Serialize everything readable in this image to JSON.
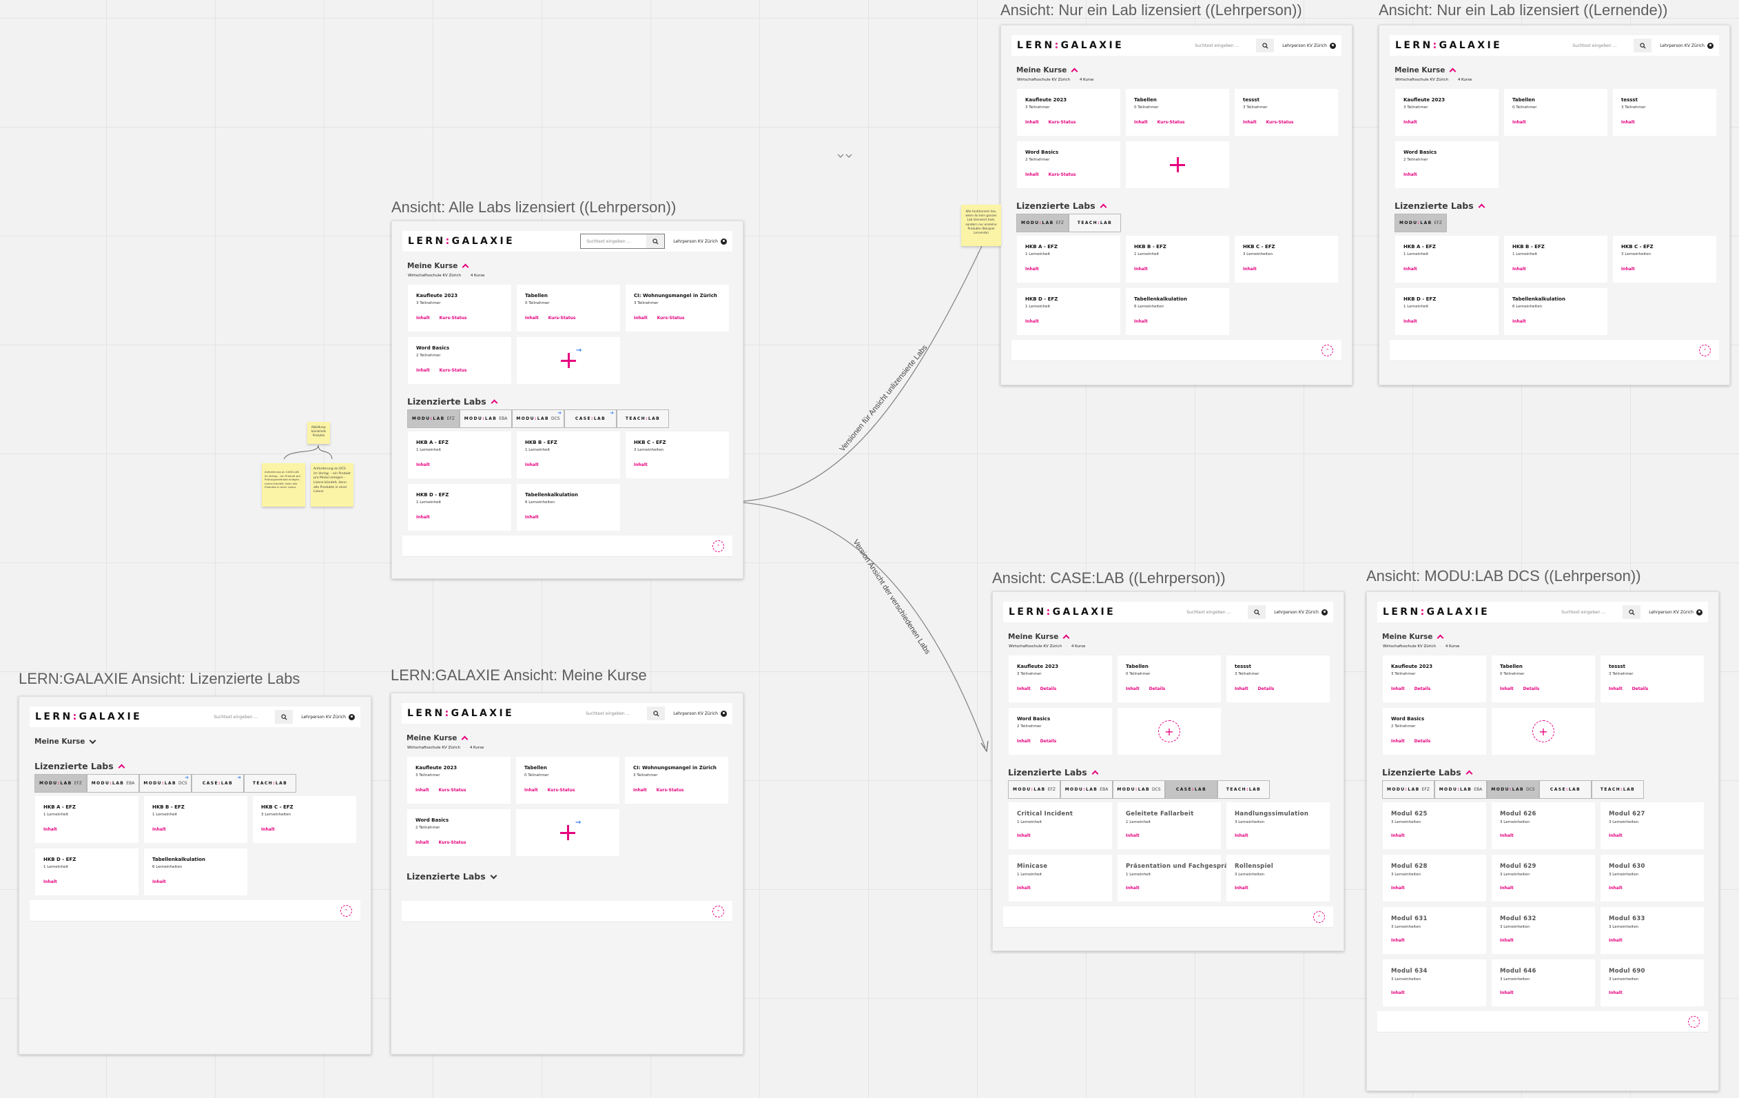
{
  "app": {
    "logo": "LERN:GALAXIE",
    "search_placeholder": "Suchtext eingeben ...",
    "user": "Lehrperson KV Zürich",
    "accent": "#e6007e",
    "marker_color": "#3b82f6"
  },
  "frames": [
    {
      "title": "Ansicht: Alle Labs lizensiert ((Lehrperson))",
      "courses": {
        "heading": "Meine Kurse",
        "expanded": true,
        "school": "Wirtschaftsschule KV Zürich",
        "count": "4 Kurse",
        "items": [
          {
            "title": "Kaufleute 2023",
            "meta": "3 Teilnehmer",
            "links": [
              "Inhalt",
              "Kurs-Status"
            ]
          },
          {
            "title": "Tabellen",
            "meta": "0 Teilnehmer",
            "links": [
              "Inhalt",
              "Kurs-Status"
            ]
          },
          {
            "title": "CI: Wohnungsmangel in Zürich",
            "meta": "3 Teilnehmer",
            "links": [
              "Inhalt",
              "Kurs-Status"
            ]
          },
          {
            "title": "Word Basics",
            "meta": "2 Teilnehmer",
            "links": [
              "Inhalt",
              "Kurs-Status"
            ]
          }
        ],
        "add_card": {
          "icon": "plus-icon",
          "badge": "arrow-right-icon"
        }
      },
      "labs": {
        "heading": "Lizenzierte Labs",
        "expanded": true,
        "tabs": [
          {
            "label": "MODU:LAB",
            "suffix": "EFZ",
            "active": true
          },
          {
            "label": "MODU:LAB",
            "suffix": "EBA"
          },
          {
            "label": "MODU:LAB",
            "suffix": "DCS",
            "marker": "arrow-right-icon"
          },
          {
            "label": "CASE:LAB",
            "suffix": "",
            "marker": "arrow-right-icon"
          },
          {
            "label": "TEACH:LAB",
            "suffix": ""
          }
        ],
        "items": [
          {
            "title": "HKB A - EFZ",
            "meta": "1 Lerneinheit",
            "links": [
              "Inhalt"
            ]
          },
          {
            "title": "HKB B - EFZ",
            "meta": "1 Lerneinheit",
            "links": [
              "Inhalt"
            ]
          },
          {
            "title": "HKB C - EFZ",
            "meta": "3 Lerneinheiten",
            "links": [
              "Inhalt"
            ]
          },
          {
            "title": "HKB D - EFZ",
            "meta": "1 Lerneinheit",
            "links": [
              "Inhalt"
            ]
          },
          {
            "title": "Tabellenkalkulation",
            "meta": "6 Lerneinheiten",
            "links": [
              "Inhalt"
            ]
          }
        ]
      }
    },
    {
      "title": "Ansicht: Nur ein Lab lizensiert ((Lehrperson))",
      "courses": {
        "heading": "Meine Kurse",
        "expanded": true,
        "school": "Wirtschaftsschule KV Zürich",
        "count": "4 Kurse",
        "items": [
          {
            "title": "Kaufleute 2023",
            "meta": "3 Teilnehmer",
            "links": [
              "Inhalt",
              "Kurs-Status"
            ]
          },
          {
            "title": "Tabellen",
            "meta": "0 Teilnehmer",
            "links": [
              "Inhalt",
              "Kurs-Status"
            ]
          },
          {
            "title": "tessst",
            "meta": "3 Teilnehmer",
            "links": [
              "Inhalt",
              "Kurs-Status"
            ]
          },
          {
            "title": "Word Basics",
            "meta": "2 Teilnehmer",
            "links": [
              "Inhalt",
              "Kurs-Status"
            ]
          }
        ],
        "add_card": {
          "icon": "plus-icon"
        }
      },
      "labs": {
        "heading": "Lizenzierte Labs",
        "expanded": true,
        "tabs": [
          {
            "label": "MODU:LAB",
            "suffix": "EFZ",
            "active": true
          },
          {
            "label": "TEACH:LAB",
            "suffix": ""
          }
        ],
        "items": [
          {
            "title": "HKB A - EFZ",
            "meta": "1 Lerneinheit",
            "links": [
              "Inhalt"
            ]
          },
          {
            "title": "HKB B - EFZ",
            "meta": "1 Lerneinheit",
            "links": [
              "Inhalt"
            ]
          },
          {
            "title": "HKB C - EFZ",
            "meta": "3 Lerneinheiten",
            "links": [
              "Inhalt"
            ]
          },
          {
            "title": "HKB D - EFZ",
            "meta": "1 Lerneinheit",
            "links": [
              "Inhalt"
            ]
          },
          {
            "title": "Tabellenkalkulation",
            "meta": "6 Lerneinheiten",
            "links": [
              "Inhalt"
            ]
          }
        ]
      }
    },
    {
      "title": "Ansicht: Nur ein Lab lizensiert ((Lernende))",
      "courses": {
        "heading": "Meine Kurse",
        "expanded": true,
        "school": "Wirtschaftsschule KV Zürich",
        "count": "4 Kurse",
        "items": [
          {
            "title": "Kaufleute 2023",
            "meta": "3 Teilnehmer",
            "links": [
              "Inhalt"
            ]
          },
          {
            "title": "Tabellen",
            "meta": "0 Teilnehmer",
            "links": [
              "Inhalt"
            ]
          },
          {
            "title": "tessst",
            "meta": "3 Teilnehmer",
            "links": [
              "Inhalt"
            ]
          },
          {
            "title": "Word Basics",
            "meta": "2 Teilnehmer",
            "links": [
              "Inhalt"
            ]
          }
        ]
      },
      "labs": {
        "heading": "Lizenzierte Labs",
        "expanded": true,
        "tabs": [
          {
            "label": "MODU:LAB",
            "suffix": "EFZ",
            "active": true
          }
        ],
        "items": [
          {
            "title": "HKB A - EFZ",
            "meta": "1 Lerneinheit",
            "links": [
              "Inhalt"
            ]
          },
          {
            "title": "HKB B - EFZ",
            "meta": "1 Lerneinheit",
            "links": [
              "Inhalt"
            ]
          },
          {
            "title": "HKB C - EFZ",
            "meta": "3 Lerneinheiten",
            "links": [
              "Inhalt"
            ]
          },
          {
            "title": "HKB D - EFZ",
            "meta": "1 Lerneinheit",
            "links": [
              "Inhalt"
            ]
          },
          {
            "title": "Tabellenkalkulation",
            "meta": "6 Lerneinheiten",
            "links": [
              "Inhalt"
            ]
          }
        ]
      }
    },
    {
      "title": "Ansicht: CASE:LAB ((Lehrperson))",
      "courses": {
        "heading": "Meine Kurse",
        "expanded": true,
        "school": "Wirtschaftsschule KV Zürich",
        "count": "4 Kurse",
        "items": [
          {
            "title": "Kaufleute 2023",
            "meta": "3 Teilnehmer",
            "links": [
              "Inhalt",
              "Details"
            ]
          },
          {
            "title": "Tabellen",
            "meta": "0 Teilnehmer",
            "links": [
              "Inhalt",
              "Details"
            ]
          },
          {
            "title": "tessst",
            "meta": "3 Teilnehmer",
            "links": [
              "Inhalt",
              "Details"
            ]
          },
          {
            "title": "Word Basics",
            "meta": "2 Teilnehmer",
            "links": [
              "Inhalt",
              "Details"
            ]
          }
        ],
        "add_card": {
          "icon": "circle-plus-icon"
        }
      },
      "labs": {
        "heading": "Lizenzierte Labs",
        "expanded": true,
        "tabs": [
          {
            "label": "MODU:LAB",
            "suffix": "EFZ"
          },
          {
            "label": "MODU:LAB",
            "suffix": "EBA"
          },
          {
            "label": "MODU:LAB",
            "suffix": "DCS"
          },
          {
            "label": "CASE:LAB",
            "suffix": "",
            "active": true
          },
          {
            "label": "TEACH:LAB",
            "suffix": ""
          }
        ],
        "items": [
          {
            "title": "Critical Incident",
            "meta": "1 Lerneinheit",
            "links": [
              "Inhalt"
            ]
          },
          {
            "title": "Geleitete Fallarbeit",
            "meta": "1 Lerneinheit",
            "links": [
              "Inhalt"
            ]
          },
          {
            "title": "Handlungssimulation",
            "meta": "3 Lerneinheiten",
            "links": [
              "Inhalt"
            ]
          },
          {
            "title": "Minicase",
            "meta": "1 Lerneinheit",
            "links": [
              "Inhalt"
            ]
          },
          {
            "title": "Präsentation und Fachgespräch",
            "meta": "1 Lerneinheit",
            "links": [
              "Inhalt"
            ]
          },
          {
            "title": "Rollenspiel",
            "meta": "3 Lerneinheiten",
            "links": [
              "Inhalt"
            ]
          }
        ]
      }
    },
    {
      "title": "Ansicht: MODU:LAB DCS ((Lehrperson))",
      "courses": {
        "heading": "Meine Kurse",
        "expanded": true,
        "school": "Wirtschaftsschule KV Zürich",
        "count": "4 Kurse",
        "items": [
          {
            "title": "Kaufleute 2023",
            "meta": "3 Teilnehmer",
            "links": [
              "Inhalt",
              "Details"
            ]
          },
          {
            "title": "Tabellen",
            "meta": "0 Teilnehmer",
            "links": [
              "Inhalt",
              "Details"
            ]
          },
          {
            "title": "tessst",
            "meta": "3 Teilnehmer",
            "links": [
              "Inhalt",
              "Details"
            ]
          },
          {
            "title": "Word Basics",
            "meta": "2 Teilnehmer",
            "links": [
              "Inhalt",
              "Details"
            ]
          }
        ],
        "add_card": {
          "icon": "circle-plus-icon"
        }
      },
      "labs": {
        "heading": "Lizenzierte Labs",
        "expanded": true,
        "tabs": [
          {
            "label": "MODU:LAB",
            "suffix": "EFZ"
          },
          {
            "label": "MODU:LAB",
            "suffix": "EBA"
          },
          {
            "label": "MODU:LAB",
            "suffix": "DCS",
            "active": true
          },
          {
            "label": "CASE:LAB",
            "suffix": ""
          },
          {
            "label": "TEACH:LAB",
            "suffix": ""
          }
        ],
        "items": [
          {
            "title": "Modul 625",
            "meta": "3 Lerneinheiten",
            "links": [
              "Inhalt"
            ]
          },
          {
            "title": "Modul 626",
            "meta": "3 Lerneinheiten",
            "links": [
              "Inhalt"
            ]
          },
          {
            "title": "Modul 627",
            "meta": "3 Lerneinheiten",
            "links": [
              "Inhalt"
            ]
          },
          {
            "title": "Modul 628",
            "meta": "3 Lerneinheiten",
            "links": [
              "Inhalt"
            ]
          },
          {
            "title": "Modul 629",
            "meta": "3 Lerneinheiten",
            "links": [
              "Inhalt"
            ]
          },
          {
            "title": "Modul 630",
            "meta": "3 Lerneinheiten",
            "links": [
              "Inhalt"
            ]
          },
          {
            "title": "Modul 631",
            "meta": "3 Lerneinheiten",
            "links": [
              "Inhalt"
            ]
          },
          {
            "title": "Modul 632",
            "meta": "3 Lerneinheiten",
            "links": [
              "Inhalt"
            ]
          },
          {
            "title": "Modul 633",
            "meta": "3 Lerneinheiten",
            "links": [
              "Inhalt"
            ]
          },
          {
            "title": "Modul 634",
            "meta": "3 Lerneinheiten",
            "links": [
              "Inhalt"
            ]
          },
          {
            "title": "Modul 646",
            "meta": "3 Lerneinheiten",
            "links": [
              "Inhalt"
            ]
          },
          {
            "title": "Modul 690",
            "meta": "3 Lerneinheiten",
            "links": [
              "Inhalt"
            ]
          }
        ]
      }
    },
    {
      "title": "LERN:GALAXIE Ansicht: Lizenzierte Labs",
      "courses": {
        "heading": "Meine Kurse",
        "expanded": false
      },
      "labs": {
        "heading": "Lizenzierte Labs",
        "expanded": true,
        "tabs": [
          {
            "label": "MODU:LAB",
            "suffix": "EFZ",
            "active": true
          },
          {
            "label": "MODU:LAB",
            "suffix": "EBA"
          },
          {
            "label": "MODU:LAB",
            "suffix": "DCS",
            "marker": "arrow-right-icon"
          },
          {
            "label": "CASE:LAB",
            "suffix": "",
            "marker": "arrow-right-icon"
          },
          {
            "label": "TEACH:LAB",
            "suffix": ""
          }
        ],
        "items": [
          {
            "title": "HKB A - EFZ",
            "meta": "1 Lerneinheit",
            "links": [
              "Inhalt"
            ]
          },
          {
            "title": "HKB B - EFZ",
            "meta": "1 Lerneinheit",
            "links": [
              "Inhalt"
            ]
          },
          {
            "title": "HKB C - EFZ",
            "meta": "3 Lerneinheiten",
            "links": [
              "Inhalt"
            ]
          },
          {
            "title": "HKB D - EFZ",
            "meta": "1 Lerneinheit",
            "links": [
              "Inhalt"
            ]
          },
          {
            "title": "Tabellenkalkulation",
            "meta": "6 Lerneinheiten",
            "links": [
              "Inhalt"
            ]
          }
        ]
      }
    },
    {
      "title": "LERN:GALAXIE Ansicht: Meine Kurse",
      "courses": {
        "heading": "Meine Kurse",
        "expanded": true,
        "school": "Wirtschaftsschule KV Zürich",
        "count": "4 Kurse",
        "items": [
          {
            "title": "Kaufleute 2023",
            "meta": "3 Teilnehmer",
            "links": [
              "Inhalt",
              "Kurs-Status"
            ]
          },
          {
            "title": "Tabellen",
            "meta": "0 Teilnehmer",
            "links": [
              "Inhalt",
              "Kurs-Status"
            ]
          },
          {
            "title": "CI: Wohnungsmangel in Zürich",
            "meta": "3 Teilnehmer",
            "links": [
              "Inhalt",
              "Kurs-Status"
            ]
          },
          {
            "title": "Word Basics",
            "meta": "2 Teilnehmer",
            "links": [
              "Inhalt",
              "Kurs-Status"
            ]
          }
        ],
        "add_card": {
          "icon": "plus-icon",
          "badge": "arrow-right-icon"
        }
      },
      "labs": {
        "heading": "Lizenzierte Labs",
        "expanded": false
      }
    }
  ],
  "notes": [
    {
      "text": "Wie funktioniert das, wenn du kein ganzes Lab lizenziert hast, sondern nur einzelne Produkte (Beispiel Lernende)"
    },
    {
      "text": "Abbildung: bündelnde Produkte"
    },
    {
      "text": "Anforderung an CASE:LAB im Verlag: - ein Produkt pro Prüfungsmethode anlegen - Lizenz bündelt, dann alle Produkte in einer Lizenz"
    },
    {
      "text": "Anforderung an DCS im Verlag: - ein Produkt pro Modul anlegen - Lizenz bündelt, dann alle Produkte in einer Lizenz"
    }
  ],
  "connectors": [
    {
      "label": "Versionen für Ansicht unlizensierte Labs"
    },
    {
      "label": "Version Ansicht der verschiedenen Labs"
    }
  ],
  "canvas_icons": [
    "double-chevron-down-icon"
  ]
}
